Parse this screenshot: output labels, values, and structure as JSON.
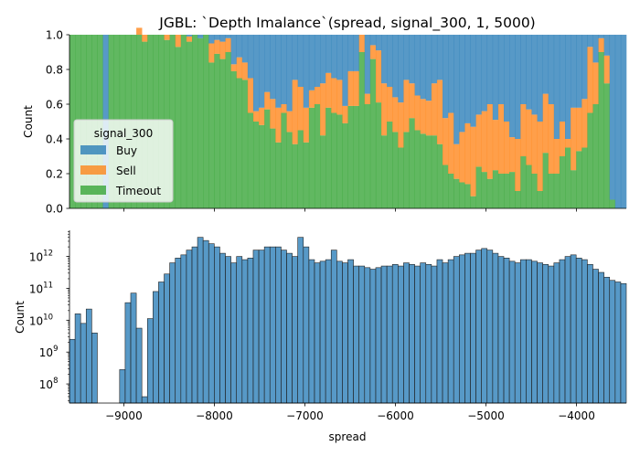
{
  "title": "JGBL: `Depth Imalance`(spread, signal_300, 1, 5000)",
  "colors": {
    "buy": "#1f77b4",
    "sell": "#ff7f0e",
    "timeout": "#2ca02c",
    "bar_alpha": 0.75
  },
  "chart_data": [
    {
      "type": "bar",
      "subtype": "stacked-normalized-histogram",
      "ylabel": "Count",
      "xlabel": "",
      "xlim": [
        -9600,
        -3450
      ],
      "ylim": [
        0,
        1.0
      ],
      "yticks": [
        "0.0",
        "0.2",
        "0.4",
        "0.6",
        "0.8",
        "1.0"
      ],
      "legend": {
        "title": "signal_300",
        "placement": "center-left",
        "entries": [
          "Buy",
          "Sell",
          "Timeout"
        ]
      },
      "bins": {
        "start": -9600,
        "width": 61.5,
        "count": 100
      },
      "timeout_share": [
        1,
        1,
        1,
        1,
        1,
        1,
        0,
        1,
        1,
        1,
        1,
        1,
        1,
        0.96,
        1,
        1,
        1,
        0.97,
        1,
        0.93,
        1,
        0.96,
        1,
        0.98,
        1,
        0.84,
        0.89,
        0.86,
        0.9,
        0.79,
        0.75,
        0.74,
        0.55,
        0.5,
        0.48,
        0.57,
        0.46,
        0.38,
        0.55,
        0.44,
        0.37,
        0.45,
        0.38,
        0.58,
        0.6,
        0.42,
        0.58,
        0.55,
        0.54,
        0.49,
        0.59,
        0.59,
        0.9,
        0.6,
        0.86,
        0.61,
        0.42,
        0.5,
        0.44,
        0.35,
        0.44,
        0.52,
        0.45,
        0.43,
        0.42,
        0.42,
        0.37,
        0.25,
        0.2,
        0.17,
        0.15,
        0.14,
        0.07,
        0.24,
        0.21,
        0.17,
        0.22,
        0.2,
        0.2,
        0.21,
        0.1,
        0.3,
        0.25,
        0.2,
        0.1,
        0.32,
        0.2,
        0.2,
        0.3,
        0.35,
        0.22,
        0.33,
        0.35,
        0.55,
        0.6,
        0.9,
        0.72,
        0.05,
        0,
        0
      ],
      "sell_share": [
        0,
        0,
        0,
        0,
        0,
        0,
        0,
        0,
        0,
        0,
        0,
        0,
        0.04,
        0.04,
        0,
        0,
        0,
        0.03,
        0,
        0.07,
        0,
        0.03,
        0,
        0,
        0,
        0.11,
        0.08,
        0.1,
        0.08,
        0.04,
        0.12,
        0.1,
        0.2,
        0.06,
        0.1,
        0.1,
        0.17,
        0.2,
        0.05,
        0.12,
        0.37,
        0.25,
        0.2,
        0.1,
        0.1,
        0.3,
        0.2,
        0.2,
        0.2,
        0.1,
        0.2,
        0.2,
        0.1,
        0.06,
        0.08,
        0.3,
        0.3,
        0.2,
        0.2,
        0.26,
        0.3,
        0.2,
        0.2,
        0.2,
        0.2,
        0.3,
        0.37,
        0.27,
        0.35,
        0.2,
        0.29,
        0.35,
        0.4,
        0.3,
        0.35,
        0.43,
        0.29,
        0.4,
        0.3,
        0.2,
        0.3,
        0.3,
        0.32,
        0.34,
        0.4,
        0.34,
        0.4,
        0.2,
        0.2,
        0.05,
        0.36,
        0.25,
        0.28,
        0.38,
        0.24,
        0.08,
        0.16,
        0,
        0,
        0
      ]
    },
    {
      "type": "bar",
      "subtype": "histogram",
      "yscale": "log",
      "ylabel": "Count",
      "xlabel": "spread",
      "xlim": [
        -9600,
        -3450
      ],
      "ylim_log10": [
        7.4,
        12.82
      ],
      "xticks": [
        -9000,
        -8000,
        -7000,
        -6000,
        -5000,
        -4000
      ],
      "xtick_labels": [
        "−9000",
        "−8000",
        "−7000",
        "−6000",
        "−5000",
        "−4000"
      ],
      "yticks_log10": [
        8,
        9,
        10,
        11,
        12
      ],
      "ytick_labels": [
        "10",
        "10",
        "10",
        "10",
        "10"
      ],
      "ytick_exponents": [
        "8",
        "9",
        "10",
        "11",
        "12"
      ],
      "bins": {
        "start": -9600,
        "width": 61.5,
        "count": 100
      },
      "log10_counts": [
        9.4,
        10.2,
        9.9,
        10.35,
        9.6,
        null,
        null,
        null,
        null,
        8.45,
        10.55,
        10.85,
        9.75,
        7.6,
        10.05,
        10.9,
        11.2,
        11.45,
        11.8,
        11.95,
        12.05,
        12.2,
        12.3,
        12.6,
        12.5,
        12.4,
        12.3,
        12.1,
        12.0,
        11.8,
        12.0,
        11.9,
        11.95,
        12.2,
        12.2,
        12.3,
        12.3,
        12.3,
        12.2,
        12.1,
        12.0,
        12.6,
        12.3,
        11.9,
        11.8,
        11.85,
        11.9,
        12.2,
        11.85,
        11.8,
        11.9,
        11.7,
        11.7,
        11.65,
        11.6,
        11.65,
        11.7,
        11.7,
        11.75,
        11.7,
        11.8,
        11.75,
        11.7,
        11.8,
        11.75,
        11.7,
        11.9,
        11.8,
        11.9,
        12.0,
        12.05,
        12.1,
        12.1,
        12.2,
        12.25,
        12.2,
        12.1,
        12.0,
        11.95,
        11.85,
        11.8,
        11.9,
        11.9,
        11.85,
        11.8,
        11.75,
        11.7,
        11.8,
        11.9,
        12.0,
        12.05,
        11.95,
        11.9,
        11.75,
        11.6,
        11.5,
        11.35,
        11.25,
        11.2,
        11.15
      ]
    }
  ]
}
